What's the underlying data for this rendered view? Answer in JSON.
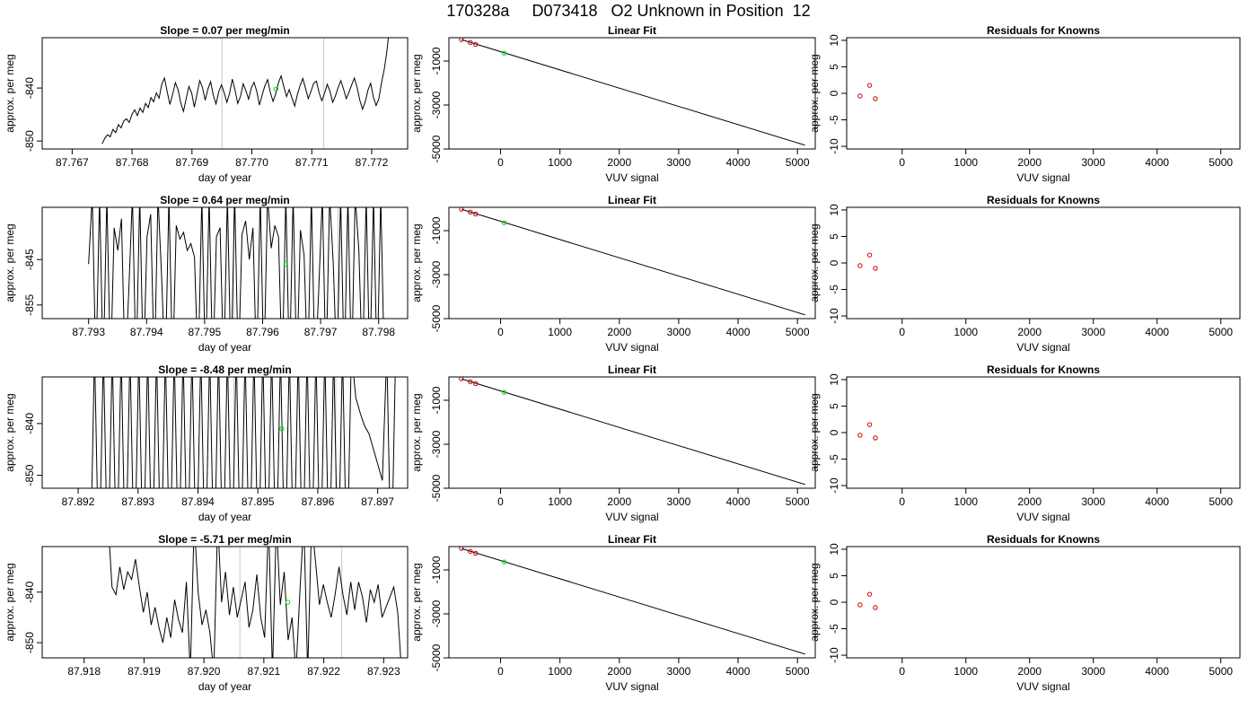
{
  "title": "170328a     D073418   O2 Unknown in Position  12",
  "colors": {
    "trace": "#000000",
    "unknown": "#00dd00",
    "known": "#cc0000",
    "bracket": "#c8c8c8"
  },
  "rows": [
    {
      "time_panel": {
        "title": "Slope =  0.07  per meg/min",
        "xlabel": "day of year",
        "ylabel": "approx. per meg",
        "xlim": [
          87.7665,
          87.7726
        ],
        "ylim": [
          -851.5,
          -830.5
        ],
        "xticks": [
          "87.767",
          "87.768",
          "87.769",
          "87.770",
          "87.771",
          "87.772"
        ],
        "yticks": [
          "-840",
          "-850"
        ],
        "brackets": [
          87.7695,
          87.7712
        ],
        "unknown_point": [
          87.7704,
          -840.2
        ],
        "trace_x": [
          87.7675,
          87.7723
        ],
        "trace_y": [
          -850.5,
          -849.5,
          -848.8,
          -849.2,
          -847.8,
          -848.4,
          -846.9,
          -847.5,
          -846.2,
          -845.8,
          -846.5,
          -845.0,
          -844.1,
          -845.2,
          -843.8,
          -844.6,
          -842.9,
          -843.7,
          -841.8,
          -842.6,
          -840.9,
          -841.9,
          -839.3,
          -838.1,
          -840.7,
          -843.1,
          -841.2,
          -839.0,
          -840.3,
          -842.8,
          -844.4,
          -842.0,
          -839.7,
          -840.9,
          -843.6,
          -841.1,
          -838.6,
          -839.9,
          -842.3,
          -840.2,
          -838.8,
          -841.4,
          -843.0,
          -840.7,
          -839.4,
          -840.9,
          -842.7,
          -841.0,
          -838.3,
          -840.4,
          -842.9,
          -841.6,
          -839.2,
          -840.5,
          -842.1,
          -840.0,
          -838.9,
          -840.6,
          -843.2,
          -841.3,
          -839.6,
          -838.4,
          -840.8,
          -842.5,
          -841.1,
          -839.0,
          -837.7,
          -839.8,
          -841.6,
          -840.3,
          -841.9,
          -843.4,
          -841.2,
          -839.5,
          -838.2,
          -840.1,
          -842.0,
          -840.6,
          -839.1,
          -838.7,
          -840.9,
          -842.4,
          -841.0,
          -839.3,
          -840.6,
          -842.7,
          -841.5,
          -839.9,
          -838.6,
          -840.2,
          -842.0,
          -840.8,
          -839.4,
          -838.1,
          -839.9,
          -842.3,
          -844.0,
          -842.6,
          -840.4,
          -839.1,
          -841.7,
          -843.3,
          -842.1,
          -839.0,
          -836.5,
          -833.0,
          -828.0
        ]
      },
      "fit_panel": {
        "title": "Linear Fit",
        "xlabel": "VUV signal",
        "ylabel": "approx. per meg"
      },
      "resid_panel": {
        "title": "Residuals for Knowns",
        "xlabel": "VUV signal",
        "ylabel": "approx. per meg"
      }
    },
    {
      "time_panel": {
        "title": "Slope =  0.64  per meg/min",
        "xlabel": "day of year",
        "ylabel": "approx. per meg",
        "xlim": [
          87.7922,
          87.7985
        ],
        "ylim": [
          -858.0,
          -833.5
        ],
        "xticks": [
          "87.793",
          "87.794",
          "87.795",
          "87.796",
          "87.797",
          "87.798"
        ],
        "yticks": [
          "-845",
          "-855"
        ],
        "brackets": [
          87.7955,
          87.7973
        ],
        "unknown_point": [
          87.7964,
          -846.0
        ],
        "trace_x": [
          87.793,
          87.7981
        ],
        "trace_y": [
          -846.0,
          -831.0,
          -870.0,
          -831.0,
          -870.0,
          -831.0,
          -870.0,
          -838.0,
          -843.0,
          -836.0,
          -870.0,
          -852.0,
          -831.0,
          -870.0,
          -831.0,
          -870.0,
          -840.0,
          -835.0,
          -870.0,
          -831.0,
          -849.0,
          -870.0,
          -831.0,
          -870.0,
          -837.5,
          -840.5,
          -839.0,
          -843.0,
          -841.5,
          -844.5,
          -870.0,
          -831.0,
          -870.0,
          -831.0,
          -870.0,
          -840.0,
          -838.0,
          -870.0,
          -831.0,
          -870.0,
          -831.0,
          -870.0,
          -839.5,
          -836.5,
          -845.0,
          -838.0,
          -870.0,
          -831.0,
          -870.0,
          -831.0,
          -842.5,
          -837.5,
          -840.0,
          -870.0,
          -831.0,
          -870.0,
          -831.0,
          -870.0,
          -838.5,
          -844.0,
          -870.0,
          -831.0,
          -870.0,
          -852.0,
          -831.0,
          -870.0,
          -831.0,
          -846.0,
          -870.0,
          -831.0,
          -870.0,
          -831.0,
          -870.0,
          -831.0,
          -843.0,
          -870.0,
          -831.0,
          -870.0,
          -831.0,
          -870.0,
          -831.0,
          -870.0
        ]
      },
      "fit_panel": {
        "title": "Linear Fit",
        "xlabel": "VUV signal",
        "ylabel": "approx. per meg"
      },
      "resid_panel": {
        "title": "Residuals for Knowns",
        "xlabel": "VUV signal",
        "ylabel": "approx. per meg"
      }
    },
    {
      "time_panel": {
        "title": "Slope =  -8.48  per meg/min",
        "xlabel": "day of year",
        "ylabel": "approx. per meg",
        "xlim": [
          87.8914,
          87.8975
        ],
        "ylim": [
          -852.5,
          -831.0
        ],
        "xticks": [
          "87.892",
          "87.893",
          "87.894",
          "87.895",
          "87.896",
          "87.897"
        ],
        "yticks": [
          "-840",
          "-850"
        ],
        "brackets": [
          87.8946,
          87.8963
        ],
        "unknown_point": [
          87.8954,
          -841.0
        ],
        "trace_x": [
          87.8922,
          87.8973
        ],
        "trace_y": [
          -870.0,
          -826.0,
          -870.0,
          -826.0,
          -870.0,
          -826.0,
          -870.0,
          -826.0,
          -870.0,
          -826.0,
          -870.0,
          -826.0,
          -870.0,
          -826.0,
          -870.0,
          -826.0,
          -870.0,
          -826.0,
          -870.0,
          -826.0,
          -870.0,
          -826.0,
          -870.0,
          -826.0,
          -870.0,
          -826.0,
          -870.0,
          -826.0,
          -870.0,
          -826.0,
          -870.0,
          -826.0,
          -870.0,
          -826.0,
          -870.0,
          -826.0,
          -870.0,
          -826.0,
          -870.0,
          -826.0,
          -870.0,
          -826.0,
          -870.0,
          -826.0,
          -870.0,
          -826.0,
          -870.0,
          -826.0,
          -870.0,
          -826.0,
          -870.0,
          -826.0,
          -870.0,
          -826.0,
          -870.0,
          -826.0,
          -870.0,
          -826.0,
          -870.0,
          -826.0,
          -835.0,
          -838.0,
          -840.5,
          -842.0,
          -845.0,
          -848.0,
          -851.0,
          -826.0,
          -870.0,
          -826.0
        ]
      },
      "fit_panel": {
        "title": "Linear Fit",
        "xlabel": "VUV signal",
        "ylabel": "approx. per meg"
      },
      "resid_panel": {
        "title": "Residuals for Knowns",
        "xlabel": "VUV signal",
        "ylabel": "approx. per meg"
      }
    },
    {
      "time_panel": {
        "title": "Slope =  -5.71  per meg/min",
        "xlabel": "day of year",
        "ylabel": "approx. per meg",
        "xlim": [
          87.9173,
          87.9234
        ],
        "ylim": [
          -853.0,
          -831.0
        ],
        "xticks": [
          "87.918",
          "87.919",
          "87.920",
          "87.921",
          "87.922",
          "87.923"
        ],
        "yticks": [
          "-840",
          "-850"
        ],
        "brackets": [
          87.9206,
          87.9223
        ],
        "unknown_point": [
          87.9214,
          -842.0
        ],
        "trace_x": [
          87.9184,
          87.9233
        ],
        "trace_y": [
          -826.0,
          -839.0,
          -840.5,
          -835.0,
          -839.5,
          -836.0,
          -837.5,
          -833.5,
          -839.0,
          -844.0,
          -840.0,
          -846.5,
          -843.0,
          -847.0,
          -850.0,
          -845.0,
          -849.0,
          -841.5,
          -845.5,
          -848.0,
          -838.0,
          -856.0,
          -826.0,
          -840.0,
          -846.5,
          -843.5,
          -848.0,
          -856.0,
          -826.0,
          -842.0,
          -836.0,
          -844.5,
          -839.0,
          -845.0,
          -841.5,
          -838.0,
          -847.0,
          -843.5,
          -836.5,
          -845.0,
          -849.0,
          -826.0,
          -856.0,
          -826.0,
          -842.5,
          -836.0,
          -849.5,
          -845.0,
          -856.0,
          -840.0,
          -826.0,
          -856.0,
          -826.0,
          -834.0,
          -842.5,
          -838.5,
          -842.0,
          -845.0,
          -840.5,
          -835.0,
          -840.5,
          -844.5,
          -838.0,
          -843.5,
          -838.0,
          -841.0,
          -846.0,
          -839.5,
          -842.0,
          -838.5,
          -845.0,
          -843.0,
          -841.0,
          -839.0,
          -844.0,
          -856.0
        ]
      },
      "fit_panel": {
        "title": "Linear Fit",
        "xlabel": "VUV signal",
        "ylabel": "approx. per meg"
      },
      "resid_panel": {
        "title": "Residuals for Knowns",
        "xlabel": "VUV signal",
        "ylabel": "approx. per meg"
      }
    }
  ],
  "fit_axes": {
    "xlim": [
      -870,
      5300
    ],
    "ylim": [
      -5000,
      60
    ],
    "xticks": [
      0,
      1000,
      2000,
      3000,
      4000,
      5000
    ],
    "yticks": [
      -1000,
      -3000,
      -5000
    ],
    "line": [
      [
        -660,
        -27
      ],
      [
        5130,
        -4830
      ]
    ],
    "knowns": [
      [
        -660,
        -27
      ],
      [
        -510,
        -158
      ],
      [
        -420,
        -243
      ]
    ],
    "unknown": [
      [
        60,
        -640
      ]
    ]
  },
  "resid_axes": {
    "xlim": [
      -870,
      5300
    ],
    "ylim": [
      -10.5,
      10.5
    ],
    "xticks": [
      0,
      1000,
      2000,
      3000,
      4000,
      5000
    ],
    "yticks": [
      10,
      5,
      0,
      -5,
      -10
    ],
    "knowns": [
      [
        -660,
        -0.5
      ],
      [
        -510,
        1.5
      ],
      [
        -420,
        -1.0
      ]
    ]
  }
}
